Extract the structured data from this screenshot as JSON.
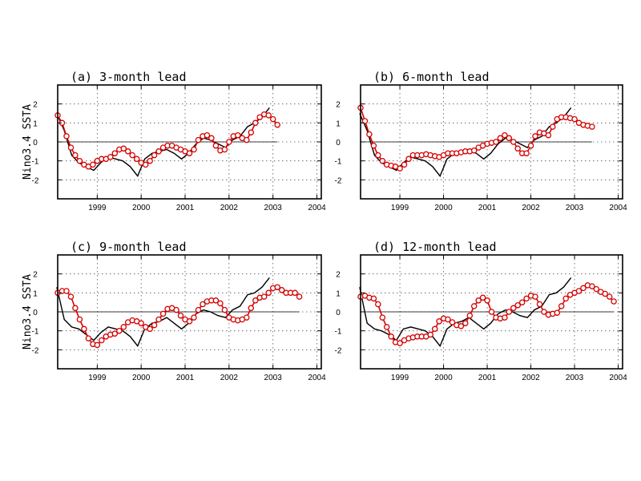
{
  "colors": {
    "observed": "#000000",
    "forecast": "#d40000"
  },
  "chart_data": [
    {
      "type": "line",
      "title": "(a) 3-month lead",
      "ylabel": "Nino3.4 SSTA",
      "xlim": [
        1998.1,
        2004.1
      ],
      "ylim": [
        -3,
        3
      ],
      "xticks": [
        1999,
        2000,
        2001,
        2002,
        2003,
        2004
      ],
      "xticklabels": [
        "1999",
        "2000",
        "2001",
        "2002",
        "2003",
        "2004"
      ],
      "yticks": [
        -2,
        -1,
        0,
        1,
        2
      ],
      "yticklabels": [
        "-2",
        "-1",
        "0",
        "1",
        "2"
      ],
      "grid": true,
      "reference_line": {
        "y": 0,
        "x": [
          1998.1,
          2003.1
        ]
      },
      "series": [
        {
          "style": "line",
          "x": [
            1998.08,
            1998.25,
            1998.42,
            1998.58,
            1998.75,
            1998.92,
            1999.08,
            1999.25,
            1999.42,
            1999.58,
            1999.75,
            1999.92,
            2000.08,
            2000.25,
            2000.42,
            2000.58,
            2000.75,
            2000.92,
            2001.08,
            2001.25,
            2001.42,
            2001.58,
            2001.75,
            2001.92,
            2002.08,
            2002.25,
            2002.42,
            2002.58,
            2002.75,
            2002.92
          ],
          "y": [
            1.5,
            0.6,
            -0.7,
            -1.1,
            -1.3,
            -1.5,
            -1.1,
            -0.8,
            -0.9,
            -1.0,
            -1.3,
            -1.8,
            -0.9,
            -0.6,
            -0.5,
            -0.4,
            -0.6,
            -0.9,
            -0.6,
            -0.1,
            0.2,
            0.1,
            -0.1,
            -0.3,
            0.1,
            0.3,
            0.8,
            1.0,
            1.3,
            1.8
          ]
        },
        {
          "style": "markers-line",
          "x": [
            1998.1,
            1998.2,
            1998.3,
            1998.4,
            1998.5,
            1998.6,
            1998.7,
            1998.8,
            1998.9,
            1999.0,
            1999.1,
            1999.2,
            1999.3,
            1999.4,
            1999.5,
            1999.6,
            1999.7,
            1999.8,
            1999.9,
            2000.0,
            2000.1,
            2000.2,
            2000.3,
            2000.4,
            2000.5,
            2000.6,
            2000.7,
            2000.8,
            2000.9,
            2001.0,
            2001.1,
            2001.2,
            2001.3,
            2001.4,
            2001.5,
            2001.6,
            2001.7,
            2001.8,
            2001.9,
            2002.0,
            2002.1,
            2002.2,
            2002.3,
            2002.4,
            2002.5,
            2002.6,
            2002.7,
            2002.8,
            2002.9,
            2003.0,
            2003.1
          ],
          "y": [
            1.4,
            1.0,
            0.3,
            -0.3,
            -0.7,
            -1.0,
            -1.2,
            -1.3,
            -1.2,
            -1.0,
            -0.9,
            -0.9,
            -0.8,
            -0.6,
            -0.4,
            -0.35,
            -0.5,
            -0.7,
            -0.9,
            -1.1,
            -1.2,
            -1.0,
            -0.7,
            -0.5,
            -0.3,
            -0.2,
            -0.2,
            -0.3,
            -0.4,
            -0.5,
            -0.6,
            -0.4,
            0.1,
            0.3,
            0.35,
            0.2,
            -0.2,
            -0.45,
            -0.4,
            0.0,
            0.3,
            0.35,
            0.2,
            0.1,
            0.5,
            1.0,
            1.3,
            1.45,
            1.4,
            1.2,
            0.9
          ]
        }
      ]
    },
    {
      "type": "line",
      "title": "(b) 6-month lead",
      "ylabel": "",
      "xlim": [
        1998.1,
        2004.1
      ],
      "ylim": [
        -3,
        3
      ],
      "xticks": [
        1999,
        2000,
        2001,
        2002,
        2003,
        2004
      ],
      "xticklabels": [
        "1999",
        "2000",
        "2001",
        "2002",
        "2003",
        "2004"
      ],
      "yticks": [
        -2,
        -1,
        0,
        1,
        2
      ],
      "yticklabels": [
        "-2",
        "-1",
        "0",
        "1",
        "2"
      ],
      "grid": true,
      "reference_line": {
        "y": 0,
        "x": [
          1998.1,
          2003.4
        ]
      },
      "series": [
        {
          "style": "line",
          "x": [
            1998.08,
            1998.25,
            1998.42,
            1998.58,
            1998.75,
            1998.92,
            1999.08,
            1999.25,
            1999.42,
            1999.58,
            1999.75,
            1999.92,
            2000.08,
            2000.25,
            2000.42,
            2000.58,
            2000.75,
            2000.92,
            2001.08,
            2001.25,
            2001.42,
            2001.58,
            2001.75,
            2001.92,
            2002.08,
            2002.25,
            2002.42,
            2002.58,
            2002.75,
            2002.92
          ],
          "y": [
            1.5,
            0.6,
            -0.7,
            -1.1,
            -1.3,
            -1.5,
            -1.1,
            -0.8,
            -0.9,
            -1.0,
            -1.3,
            -1.8,
            -0.9,
            -0.6,
            -0.5,
            -0.4,
            -0.6,
            -0.9,
            -0.6,
            -0.1,
            0.2,
            0.1,
            -0.1,
            -0.3,
            0.1,
            0.3,
            0.8,
            1.0,
            1.3,
            1.8
          ]
        },
        {
          "style": "markers-line",
          "x": [
            1998.1,
            1998.2,
            1998.3,
            1998.4,
            1998.5,
            1998.6,
            1998.7,
            1998.8,
            1998.9,
            1999.0,
            1999.1,
            1999.2,
            1999.3,
            1999.4,
            1999.5,
            1999.6,
            1999.7,
            1999.8,
            1999.9,
            2000.0,
            2000.1,
            2000.2,
            2000.3,
            2000.4,
            2000.5,
            2000.6,
            2000.7,
            2000.8,
            2000.9,
            2001.0,
            2001.1,
            2001.2,
            2001.3,
            2001.4,
            2001.5,
            2001.6,
            2001.7,
            2001.8,
            2001.9,
            2002.0,
            2002.1,
            2002.2,
            2002.3,
            2002.4,
            2002.5,
            2002.6,
            2002.7,
            2002.8,
            2002.9,
            2003.0,
            2003.1,
            2003.2,
            2003.3,
            2003.4
          ],
          "y": [
            1.8,
            1.1,
            0.4,
            -0.2,
            -0.7,
            -1.0,
            -1.2,
            -1.25,
            -1.3,
            -1.4,
            -1.2,
            -0.9,
            -0.7,
            -0.7,
            -0.7,
            -0.65,
            -0.7,
            -0.75,
            -0.8,
            -0.7,
            -0.6,
            -0.6,
            -0.6,
            -0.55,
            -0.5,
            -0.5,
            -0.45,
            -0.3,
            -0.2,
            -0.1,
            -0.05,
            0.0,
            0.2,
            0.35,
            0.2,
            0.0,
            -0.35,
            -0.6,
            -0.6,
            -0.2,
            0.3,
            0.5,
            0.45,
            0.35,
            0.8,
            1.2,
            1.3,
            1.3,
            1.25,
            1.2,
            1.0,
            0.9,
            0.85,
            0.8
          ]
        }
      ]
    },
    {
      "type": "line",
      "title": "(c) 9-month lead",
      "ylabel": "Nino3.4 SSTA",
      "xlim": [
        1998.1,
        2004.1
      ],
      "ylim": [
        -3,
        3
      ],
      "xticks": [
        1999,
        2000,
        2001,
        2002,
        2003,
        2004
      ],
      "xticklabels": [
        "1999",
        "2000",
        "2001",
        "2002",
        "2003",
        "2004"
      ],
      "yticks": [
        -2,
        -1,
        0,
        1,
        2
      ],
      "yticklabels": [
        "-2",
        "-1",
        "0",
        "1",
        "2"
      ],
      "grid": true,
      "reference_line": {
        "y": 0,
        "x": [
          1998.1,
          2003.6
        ]
      },
      "series": [
        {
          "style": "line",
          "x": [
            1998.08,
            1998.25,
            1998.42,
            1998.58,
            1998.75,
            1998.92,
            1999.08,
            1999.25,
            1999.42,
            1999.58,
            1999.75,
            1999.92,
            2000.08,
            2000.25,
            2000.42,
            2000.58,
            2000.75,
            2000.92,
            2001.08,
            2001.25,
            2001.42,
            2001.58,
            2001.75,
            2001.92,
            2002.08,
            2002.25,
            2002.42,
            2002.58,
            2002.75,
            2002.92
          ],
          "y": [
            1.3,
            -0.4,
            -0.8,
            -0.9,
            -1.2,
            -1.5,
            -1.1,
            -0.8,
            -0.9,
            -1.0,
            -1.3,
            -1.8,
            -0.9,
            -0.6,
            -0.5,
            -0.3,
            -0.6,
            -0.9,
            -0.6,
            -0.1,
            0.1,
            0.0,
            -0.2,
            -0.3,
            0.1,
            0.3,
            0.9,
            1.0,
            1.3,
            1.8
          ]
        },
        {
          "style": "markers-line",
          "x": [
            1998.1,
            1998.2,
            1998.3,
            1998.4,
            1998.5,
            1998.6,
            1998.7,
            1998.8,
            1998.9,
            1999.0,
            1999.1,
            1999.2,
            1999.3,
            1999.4,
            1999.5,
            1999.6,
            1999.7,
            1999.8,
            1999.9,
            2000.0,
            2000.1,
            2000.2,
            2000.3,
            2000.4,
            2000.5,
            2000.6,
            2000.7,
            2000.8,
            2000.9,
            2001.0,
            2001.1,
            2001.2,
            2001.3,
            2001.4,
            2001.5,
            2001.6,
            2001.7,
            2001.8,
            2001.9,
            2002.0,
            2002.1,
            2002.2,
            2002.3,
            2002.4,
            2002.5,
            2002.6,
            2002.7,
            2002.8,
            2002.9,
            2003.0,
            2003.1,
            2003.2,
            2003.3,
            2003.4,
            2003.5,
            2003.6
          ],
          "y": [
            1.0,
            1.1,
            1.1,
            0.8,
            0.2,
            -0.4,
            -0.9,
            -1.4,
            -1.7,
            -1.75,
            -1.5,
            -1.3,
            -1.2,
            -1.15,
            -1.0,
            -0.8,
            -0.55,
            -0.45,
            -0.5,
            -0.6,
            -0.8,
            -0.9,
            -0.7,
            -0.4,
            -0.1,
            0.15,
            0.2,
            0.1,
            -0.2,
            -0.4,
            -0.5,
            -0.3,
            0.1,
            0.4,
            0.55,
            0.6,
            0.6,
            0.45,
            0.1,
            -0.3,
            -0.4,
            -0.45,
            -0.4,
            -0.3,
            0.2,
            0.6,
            0.75,
            0.8,
            1.0,
            1.25,
            1.3,
            1.15,
            1.0,
            1.0,
            1.0,
            0.8
          ]
        }
      ]
    },
    {
      "type": "line",
      "title": "(d) 12-month lead",
      "ylabel": "",
      "xlim": [
        1998.1,
        2004.1
      ],
      "ylim": [
        -3,
        3
      ],
      "xticks": [
        1999,
        2000,
        2001,
        2002,
        2003,
        2004
      ],
      "xticklabels": [
        "1999",
        "2000",
        "2001",
        "2002",
        "2003",
        "2004"
      ],
      "yticks": [
        -2,
        -1,
        0,
        1,
        2
      ],
      "yticklabels": [
        "-2",
        "-1",
        "0",
        "1",
        "2"
      ],
      "grid": true,
      "reference_line": {
        "y": 0,
        "x": [
          1998.1,
          2003.9
        ]
      },
      "series": [
        {
          "style": "line",
          "x": [
            1998.08,
            1998.25,
            1998.42,
            1998.58,
            1998.75,
            1998.92,
            1999.08,
            1999.25,
            1999.42,
            1999.58,
            1999.75,
            1999.92,
            2000.08,
            2000.25,
            2000.42,
            2000.58,
            2000.75,
            2000.92,
            2001.08,
            2001.25,
            2001.42,
            2001.58,
            2001.75,
            2001.92,
            2002.08,
            2002.25,
            2002.42,
            2002.58,
            2002.75,
            2002.92
          ],
          "y": [
            1.3,
            -0.6,
            -0.9,
            -1.0,
            -1.2,
            -1.5,
            -0.9,
            -0.8,
            -0.9,
            -1.0,
            -1.3,
            -1.8,
            -0.9,
            -0.6,
            -0.5,
            -0.3,
            -0.6,
            -0.9,
            -0.6,
            -0.1,
            0.1,
            0.0,
            -0.2,
            -0.3,
            0.1,
            0.3,
            0.9,
            1.0,
            1.3,
            1.8
          ]
        },
        {
          "style": "markers-line",
          "x": [
            1998.1,
            1998.2,
            1998.3,
            1998.4,
            1998.5,
            1998.6,
            1998.7,
            1998.8,
            1998.9,
            1999.0,
            1999.1,
            1999.2,
            1999.3,
            1999.4,
            1999.5,
            1999.6,
            1999.7,
            1999.8,
            1999.9,
            2000.0,
            2000.1,
            2000.2,
            2000.3,
            2000.4,
            2000.5,
            2000.6,
            2000.7,
            2000.8,
            2000.9,
            2001.0,
            2001.1,
            2001.2,
            2001.3,
            2001.4,
            2001.5,
            2001.6,
            2001.7,
            2001.8,
            2001.9,
            2002.0,
            2002.1,
            2002.2,
            2002.3,
            2002.4,
            2002.5,
            2002.6,
            2002.7,
            2002.8,
            2002.9,
            2003.0,
            2003.1,
            2003.2,
            2003.3,
            2003.4,
            2003.5,
            2003.6,
            2003.7,
            2003.8,
            2003.9
          ],
          "y": [
            0.8,
            0.85,
            0.75,
            0.7,
            0.4,
            -0.3,
            -0.8,
            -1.3,
            -1.6,
            -1.65,
            -1.5,
            -1.4,
            -1.35,
            -1.3,
            -1.3,
            -1.3,
            -1.2,
            -0.9,
            -0.5,
            -0.35,
            -0.4,
            -0.55,
            -0.7,
            -0.75,
            -0.6,
            -0.2,
            0.3,
            0.6,
            0.75,
            0.6,
            0.0,
            -0.3,
            -0.35,
            -0.3,
            0.0,
            0.2,
            0.35,
            0.5,
            0.7,
            0.85,
            0.8,
            0.4,
            0.0,
            -0.15,
            -0.1,
            -0.05,
            0.3,
            0.7,
            0.9,
            1.0,
            1.1,
            1.25,
            1.4,
            1.35,
            1.2,
            1.05,
            0.95,
            0.8,
            0.55
          ]
        }
      ]
    }
  ]
}
